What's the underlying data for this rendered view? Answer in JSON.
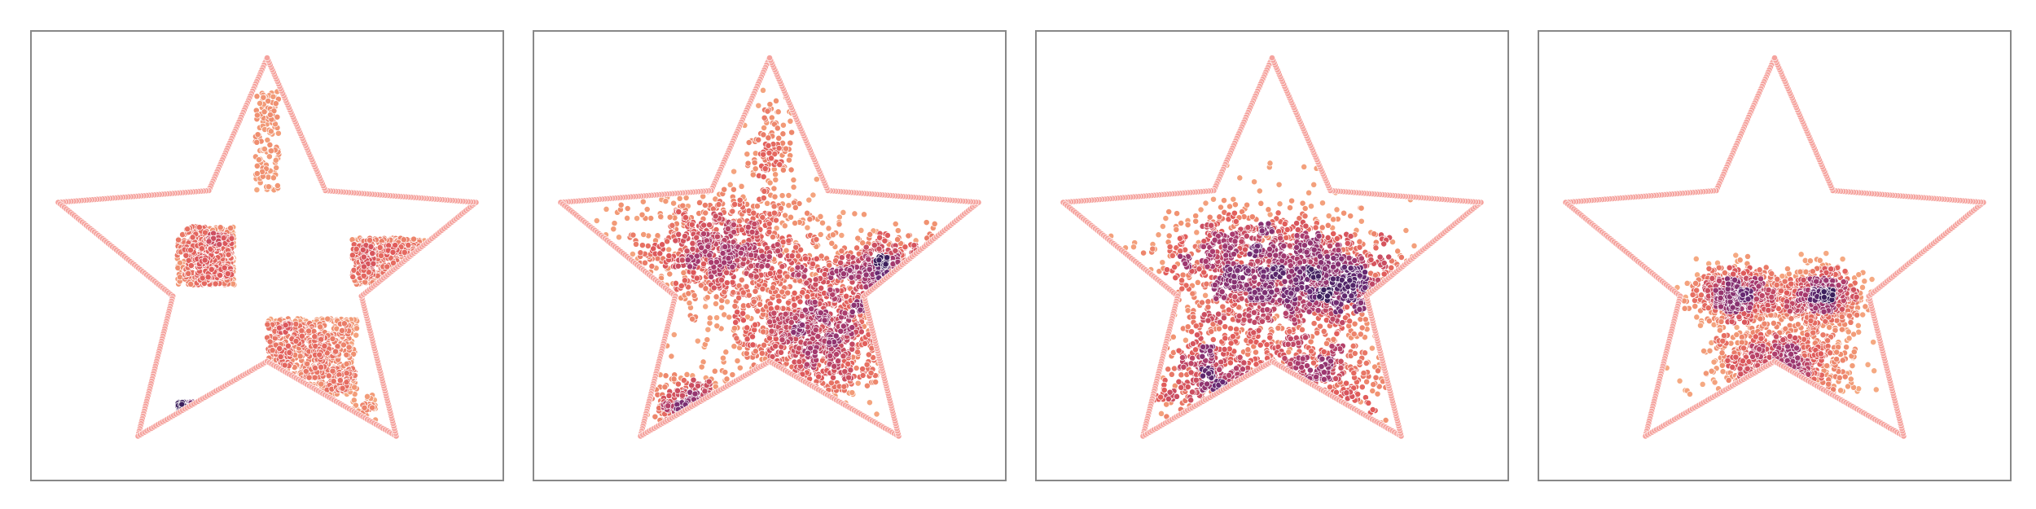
{
  "figure": {
    "panel_count": 4,
    "frame_color": "#888888",
    "boundary_color": "#f5a39e",
    "colormap": [
      "#3b1f5c",
      "#6a2a73",
      "#a83a6e",
      "#e05a5a",
      "#f09070",
      "#f7b48a"
    ]
  },
  "chart_data": [
    {
      "type": "scatter",
      "description_key": "checkerboard-in-star",
      "xlim": [
        -1.0,
        1.0
      ],
      "ylim": [
        -1.0,
        1.0
      ],
      "grid": false,
      "legend": "none",
      "boundary": "star",
      "clusters": [
        {
          "x": [
            -0.38,
            -0.14
          ],
          "y": [
            -0.13,
            0.13
          ],
          "n": 520,
          "kind": "box"
        },
        {
          "x": [
            0.0,
            0.38
          ],
          "y": [
            -0.62,
            -0.28
          ],
          "n": 620,
          "kind": "box"
        },
        {
          "x": [
            0.36,
            0.75
          ],
          "y": [
            -0.13,
            0.08
          ],
          "n": 360,
          "kind": "box"
        },
        {
          "x": [
            -0.05,
            0.05
          ],
          "y": [
            0.28,
            0.73
          ],
          "n": 120,
          "kind": "box"
        },
        {
          "x": [
            -0.38,
            -0.15
          ],
          "y": [
            -0.65,
            -0.85
          ],
          "n": 160,
          "kind": "box"
        },
        {
          "x": [
            0.36,
            0.46
          ],
          "y": [
            -0.62,
            -0.85
          ],
          "n": 40,
          "kind": "box"
        }
      ]
    },
    {
      "type": "scatter",
      "description_key": "intermediate-1",
      "xlim": [
        -1.0,
        1.0
      ],
      "ylim": [
        -1.0,
        1.0
      ],
      "grid": false,
      "legend": "none",
      "boundary": "star",
      "clusters": [
        {
          "x": -0.2,
          "y": 0.02,
          "sx": 0.2,
          "sy": 0.14,
          "n": 900,
          "kind": "gauss"
        },
        {
          "x": 0.2,
          "y": -0.35,
          "sx": 0.17,
          "sy": 0.15,
          "n": 900,
          "kind": "gauss"
        },
        {
          "x": 0.5,
          "y": -0.05,
          "sx": 0.16,
          "sy": 0.07,
          "n": 350,
          "kind": "gauss"
        },
        {
          "x": -0.3,
          "y": -0.68,
          "sx": 0.1,
          "sy": 0.07,
          "n": 180,
          "kind": "gauss"
        },
        {
          "x": 0.0,
          "y": 0.45,
          "sx": 0.05,
          "sy": 0.14,
          "n": 120,
          "kind": "gauss"
        }
      ]
    },
    {
      "type": "scatter",
      "description_key": "intermediate-2",
      "xlim": [
        -1.0,
        1.0
      ],
      "ylim": [
        -1.0,
        1.0
      ],
      "grid": false,
      "legend": "none",
      "boundary": "star",
      "clusters": [
        {
          "x": -0.05,
          "y": -0.05,
          "sx": 0.22,
          "sy": 0.14,
          "n": 1100,
          "kind": "gauss"
        },
        {
          "x": 0.32,
          "y": -0.12,
          "sx": 0.16,
          "sy": 0.1,
          "n": 450,
          "kind": "gauss"
        },
        {
          "x": -0.25,
          "y": -0.55,
          "sx": 0.13,
          "sy": 0.12,
          "n": 320,
          "kind": "gauss"
        },
        {
          "x": 0.15,
          "y": -0.55,
          "sx": 0.15,
          "sy": 0.13,
          "n": 300,
          "kind": "gauss"
        }
      ]
    },
    {
      "type": "scatter",
      "description_key": "target-gaussian-mixture",
      "xlim": [
        -1.0,
        1.0
      ],
      "ylim": [
        -1.0,
        1.0
      ],
      "grid": false,
      "legend": "none",
      "boundary": "star",
      "clusters": [
        {
          "x": -0.16,
          "y": -0.17,
          "sx": 0.09,
          "sy": 0.06,
          "n": 600,
          "kind": "gauss"
        },
        {
          "x": 0.2,
          "y": -0.17,
          "sx": 0.09,
          "sy": 0.06,
          "n": 600,
          "kind": "gauss"
        },
        {
          "x": 0.02,
          "y": -0.48,
          "sx": 0.14,
          "sy": 0.1,
          "n": 700,
          "kind": "gauss"
        }
      ]
    }
  ]
}
